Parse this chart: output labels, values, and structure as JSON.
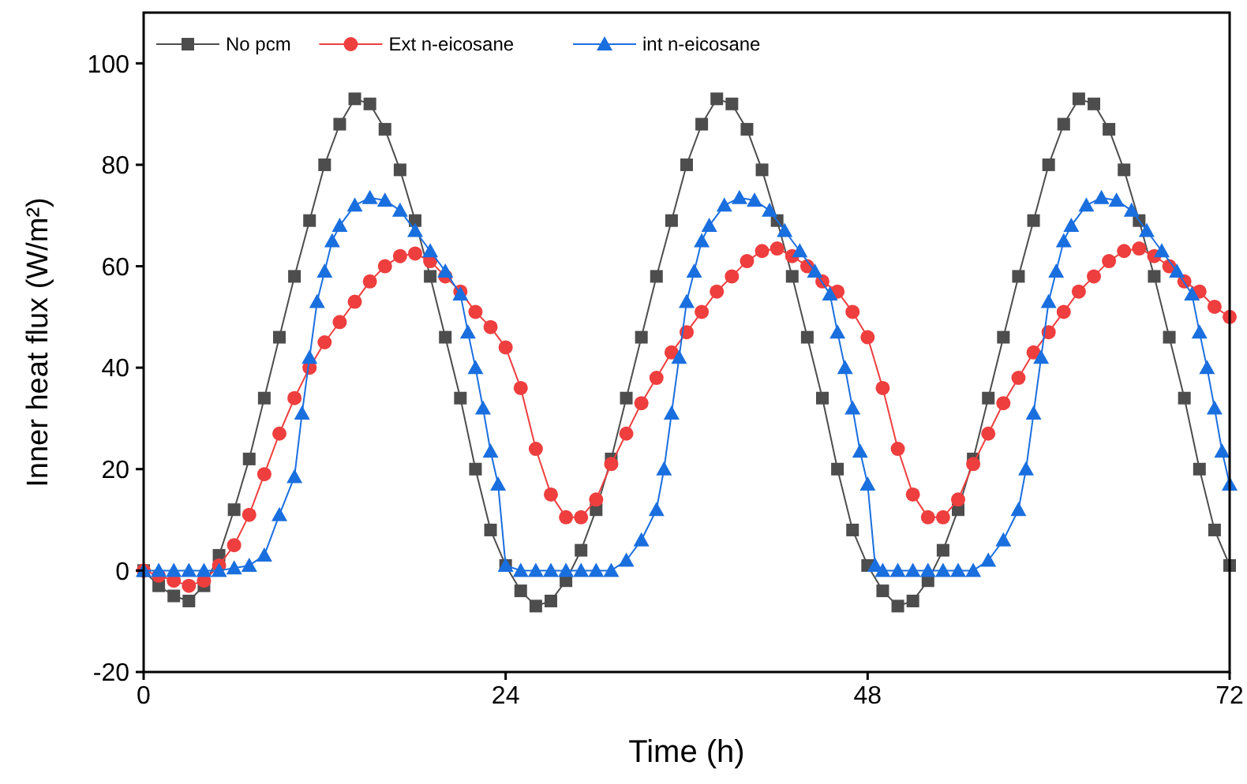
{
  "chart_data": {
    "type": "line",
    "xlabel": "Time (h)",
    "ylabel": "Inner heat flux (W/m²)",
    "xlim": [
      0,
      72
    ],
    "ylim": [
      -20,
      110
    ],
    "xticks": [
      0,
      24,
      48,
      72
    ],
    "yticks": [
      -20,
      0,
      20,
      40,
      60,
      80,
      100
    ],
    "legend": "top left",
    "grid": false,
    "series": [
      {
        "name": "No pcm",
        "color": "#4d4d4d",
        "marker": "square",
        "x": [
          0,
          1,
          2,
          3,
          4,
          5,
          6,
          7,
          8,
          9,
          10,
          11,
          12,
          13,
          14,
          15,
          16,
          17,
          18,
          19,
          20,
          21,
          22,
          23,
          24,
          25,
          26,
          27,
          28,
          29,
          30,
          31,
          32,
          33,
          34,
          35,
          36,
          37,
          38,
          39,
          40,
          41,
          42,
          43,
          44,
          45,
          46,
          47,
          48,
          49,
          50,
          51,
          52,
          53,
          54,
          55,
          56,
          57,
          58,
          59,
          60,
          61,
          62,
          63,
          64,
          65,
          66,
          67,
          68,
          69,
          70,
          71,
          72
        ],
        "values": [
          0,
          -3,
          -5,
          -6,
          -3,
          3,
          12,
          22,
          34,
          46,
          58,
          69,
          80,
          88,
          93,
          92,
          87,
          79,
          69,
          58,
          46,
          34,
          20,
          8,
          1,
          -4,
          -7,
          -6,
          -2,
          4,
          12,
          22,
          34,
          46,
          58,
          69,
          80,
          88,
          93,
          92,
          87,
          79,
          69,
          58,
          46,
          34,
          20,
          8,
          1,
          -4,
          -7,
          -6,
          -2,
          4,
          12,
          22,
          34,
          46,
          58,
          69,
          80,
          88,
          93,
          92,
          87,
          79,
          69,
          58,
          46,
          34,
          20,
          8,
          1
        ]
      },
      {
        "name": "Ext n-eicosane",
        "color": "#ee3e3e",
        "marker": "circle",
        "x": [
          0,
          1,
          2,
          3,
          4,
          5,
          6,
          7,
          8,
          9,
          10,
          11,
          12,
          13,
          14,
          15,
          16,
          17,
          18,
          19,
          20,
          21,
          22,
          23,
          24,
          25,
          26,
          27,
          28,
          29,
          30,
          31,
          32,
          33,
          34,
          35,
          36,
          37,
          38,
          39,
          40,
          41,
          42,
          43,
          44,
          45,
          46,
          47,
          48,
          49,
          50,
          51,
          52,
          53,
          54,
          55,
          56,
          57,
          58,
          59,
          60,
          61,
          62,
          63,
          64,
          65,
          66,
          67,
          68,
          69,
          70,
          71,
          72
        ],
        "values": [
          0,
          -1,
          -2,
          -3,
          -2,
          1,
          5,
          11,
          19,
          27,
          34,
          40,
          45,
          49,
          53,
          57,
          60,
          62,
          62.5,
          61,
          58,
          55,
          51,
          48,
          44,
          36,
          24,
          15,
          10.5,
          10.5,
          14,
          21,
          27,
          33,
          38,
          43,
          47,
          51,
          55,
          58,
          61,
          63,
          63.5,
          62,
          60,
          57,
          55,
          51,
          46,
          36,
          24,
          15,
          10.5,
          10.5,
          14,
          21,
          27,
          33,
          38,
          43,
          47,
          51,
          55,
          58,
          61,
          63,
          63.5,
          62,
          60,
          57,
          55,
          52,
          50
        ]
      },
      {
        "name": "int n-eicosane",
        "color": "#1a6fdf",
        "marker": "triangle",
        "x": [
          0,
          1,
          2,
          3,
          4,
          5,
          6,
          7,
          8,
          9,
          10,
          10.5,
          11,
          11.5,
          12,
          12.5,
          13,
          14,
          15,
          16,
          17,
          18,
          19,
          20,
          21,
          21.5,
          22,
          22.5,
          23,
          23.5,
          24,
          25,
          26,
          27,
          28,
          29,
          30,
          31,
          32,
          33,
          34,
          34.5,
          35,
          35.5,
          36,
          36.5,
          37,
          37.5,
          38.5,
          39.5,
          40.5,
          41.5,
          42.5,
          43.5,
          44.5,
          45.5,
          46,
          46.5,
          47,
          47.5,
          48,
          48.5,
          49,
          50,
          51,
          52,
          53,
          54,
          55,
          56,
          57,
          58,
          58.5,
          59,
          59.5,
          60,
          60.5,
          61,
          61.5,
          62.5,
          63.5,
          64.5,
          65.5,
          66.5,
          67.5,
          68.5,
          69.5,
          70,
          70.5,
          71,
          71.5,
          72
        ],
        "values": [
          0,
          0,
          0,
          0,
          0,
          0,
          0.5,
          1,
          3,
          11,
          18.5,
          31,
          42,
          53,
          59,
          65,
          68,
          72,
          73.5,
          73,
          71,
          67,
          63,
          59,
          54.5,
          47,
          40,
          32,
          23.5,
          17,
          1,
          0,
          0,
          0,
          0,
          0,
          0,
          0,
          2,
          6,
          12,
          20,
          31,
          42,
          53,
          59,
          65,
          68,
          72,
          73.5,
          73,
          71,
          67,
          63,
          59,
          54.5,
          47,
          40,
          32,
          23.5,
          17,
          1,
          0,
          0,
          0,
          0,
          0,
          0,
          0,
          2,
          6,
          12,
          20,
          31,
          42,
          53,
          59,
          65,
          68,
          72,
          73.5,
          73,
          71,
          67,
          63,
          59,
          54.5,
          47,
          40,
          32,
          23.5,
          17
        ]
      }
    ]
  }
}
